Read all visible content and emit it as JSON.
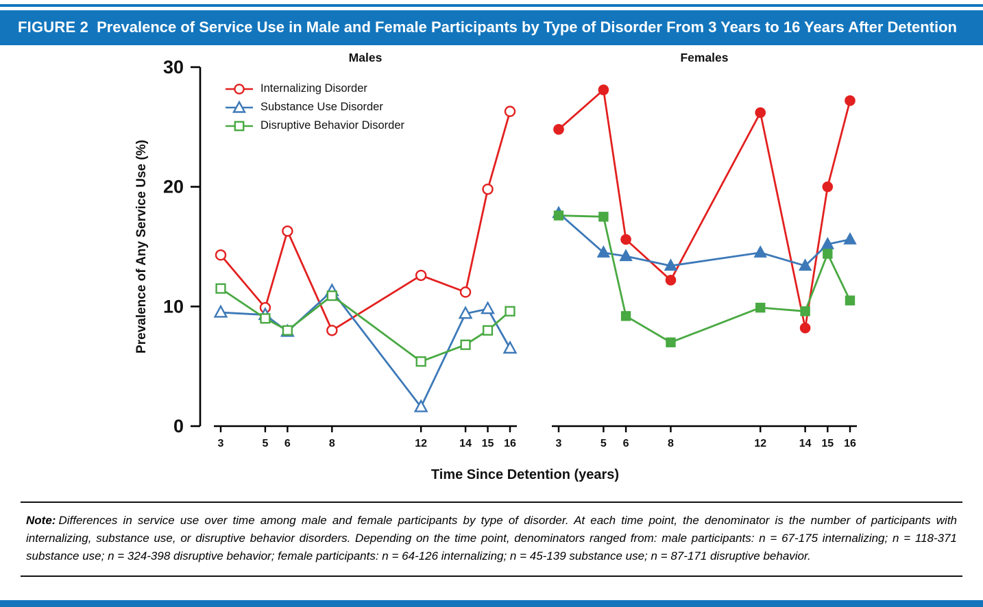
{
  "figure_header": {
    "label": "FIGURE 2",
    "title": "Prevalence of Service Use in Male and Female Participants by Type of Disorder From 3 Years to 16 Years After Detention"
  },
  "colors": {
    "banner_blue": "#1376bd",
    "internalizing_red": "#e2201f",
    "substance_blue": "#3d79b8",
    "disruptive_green": "#49a942"
  },
  "chart_data": {
    "type": "line",
    "x": [
      3,
      5,
      6,
      8,
      12,
      14,
      15,
      16
    ],
    "xlabel": "Time Since Detention (years)",
    "ylabel": "Prevalence of Any Service Use (%)",
    "ylim": [
      0,
      30
    ],
    "yticks": [
      0,
      10,
      20,
      30
    ],
    "grid": false,
    "legend_position": "top-left of Males panel",
    "legend": [
      "Internalizing Disorder",
      "Substance Use Disorder",
      "Disruptive Behavior Disorder"
    ],
    "panels": [
      {
        "title": "Males",
        "marker_fill": "open",
        "series": [
          {
            "name": "Internalizing Disorder",
            "marker": "circle",
            "color": "#e2201f",
            "values": [
              14.3,
              9.9,
              16.3,
              8.0,
              12.6,
              11.2,
              19.8,
              26.3
            ]
          },
          {
            "name": "Substance Use Disorder",
            "marker": "triangle",
            "color": "#3d79b8",
            "values": [
              9.5,
              9.3,
              7.9,
              11.3,
              1.6,
              9.4,
              9.8,
              6.5
            ]
          },
          {
            "name": "Disruptive Behavior Disorder",
            "marker": "square",
            "color": "#49a942",
            "values": [
              11.5,
              9.0,
              8.0,
              10.9,
              5.4,
              6.8,
              8.0,
              9.6
            ]
          }
        ]
      },
      {
        "title": "Females",
        "marker_fill": "filled",
        "series": [
          {
            "name": "Internalizing Disorder",
            "marker": "circle",
            "color": "#e2201f",
            "values": [
              24.8,
              28.1,
              15.6,
              12.2,
              26.2,
              8.2,
              20.0,
              27.2
            ]
          },
          {
            "name": "Substance Use Disorder",
            "marker": "triangle",
            "color": "#3d79b8",
            "values": [
              17.8,
              14.5,
              14.2,
              13.4,
              14.5,
              13.4,
              15.2,
              15.6
            ]
          },
          {
            "name": "Disruptive Behavior Disorder",
            "marker": "square",
            "color": "#49a942",
            "values": [
              17.6,
              17.5,
              9.2,
              7.0,
              9.9,
              9.6,
              14.4,
              10.5
            ]
          }
        ]
      }
    ]
  },
  "note": {
    "label": "Note:",
    "text": "Differences in service use over time among male and female participants by type of disorder. At each time point, the denominator is the number of participants with internalizing, substance use, or disruptive behavior disorders. Depending on the time point, denominators ranged from: male participants: n = 67-175 internalizing; n = 118-371 substance use; n = 324-398 disruptive behavior; female participants: n = 64-126 internalizing; n = 45-139 substance use; n = 87-171 disruptive behavior."
  }
}
